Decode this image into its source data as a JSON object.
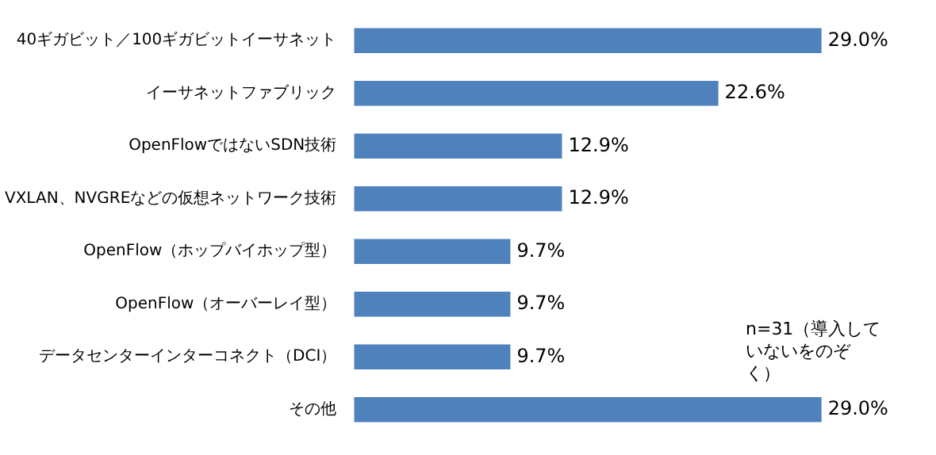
{
  "chart_data": {
    "type": "bar",
    "orientation": "horizontal",
    "categories": [
      "40ギガビット／100ギガビットイーサネット",
      "イーサネットファブリック",
      "OpenFlowではないSDN技術",
      "VXLAN、NVGREなどの仮想ネットワーク技術",
      "OpenFlow（ホップバイホップ型）",
      "OpenFlow（オーバーレイ型）",
      "データセンターインターコネクト（DCI）",
      "その他"
    ],
    "values": [
      29.0,
      22.6,
      12.9,
      12.9,
      9.7,
      9.7,
      9.7,
      29.0
    ],
    "value_labels": [
      "29.0%",
      "22.6%",
      "12.9%",
      "12.9%",
      "9.7%",
      "9.7%",
      "9.7%",
      "29.0%"
    ],
    "color": "#4f81bd",
    "tick_labels": "y",
    "grid": false,
    "legend": false,
    "annotations": [
      "n=31（導入していないをのぞく）"
    ]
  }
}
